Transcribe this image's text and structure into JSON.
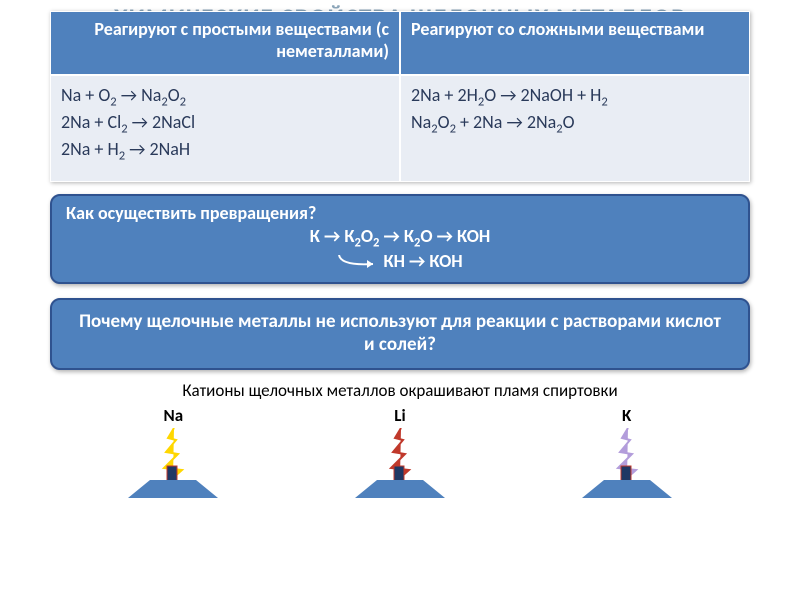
{
  "title_color": "#8aa4b8",
  "title": "ХИМИЧЕСКИЕ СВОЙСТВА ЩЕЛОЧНЫХ МЕТАЛЛОВ",
  "table": {
    "header_bg": "#4f81bd",
    "body_bg": "#e9edf4",
    "border_color": "#ffffff",
    "columns": [
      "Реагируют с простыми веществами (с неметаллами)",
      "Реагируют со сложными веществами"
    ],
    "cells": [
      "<span>Na + O<sub>2</sub> → Na<sub>2</sub>O<sub>2</sub><br>2Na + Cl<sub>2</sub> → 2NaCl<br>2Na + H<sub>2</sub> → 2NaH</span>",
      "<span>2Na + 2H<sub>2</sub>O → 2NaOH + H<sub>2</sub><br>Na<sub>2</sub>O<sub>2</sub> + 2Na → 2Na<sub>2</sub>O</span>"
    ]
  },
  "box1": {
    "question": "Как осуществить превращения?",
    "chain_top": "К → К<sub>2</sub>О<sub>2</sub>  → К<sub>2</sub>О → КОН",
    "chain_bottom": "КН → КОН"
  },
  "box2": "Почему  щелочные металлы не используют для реакции с растворами кислот и солей?",
  "caption": "Катионы щелочных металлов окрашивают пламя спиртовки",
  "burners": [
    {
      "label": "Na",
      "flame_color": "#ffd700"
    },
    {
      "label": "Li",
      "flame_color": "#c0392b"
    },
    {
      "label": "K",
      "flame_color": "#b39ddb"
    }
  ],
  "burner_body_color": "#4f81bd",
  "burner_stem_color": "#1f3864",
  "burner_stem_border": "#c0392b"
}
